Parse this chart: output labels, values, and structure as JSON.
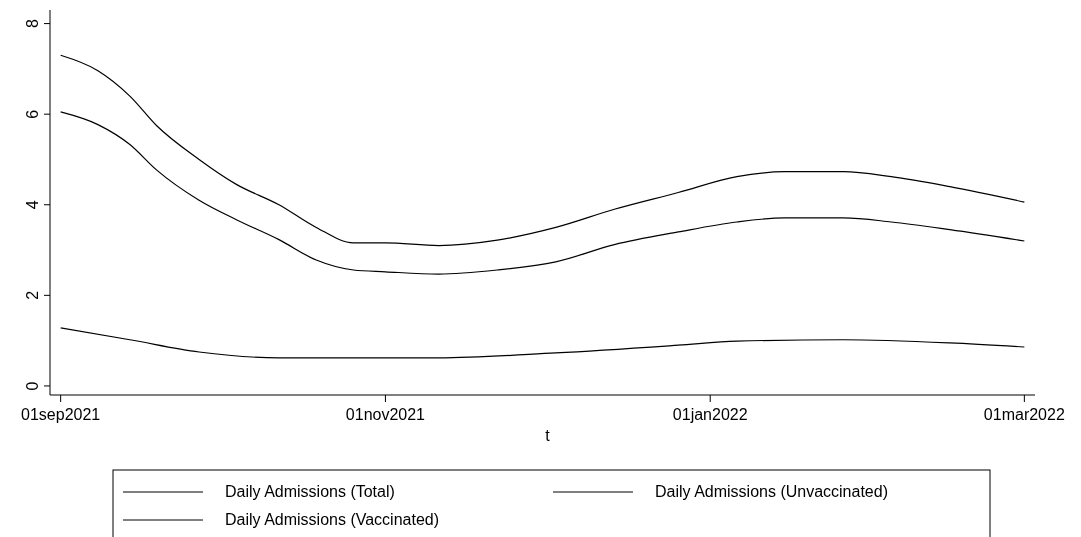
{
  "chart_data": {
    "type": "line",
    "xlabel": "t",
    "xlim": [
      "2021-08-30",
      "2022-03-03"
    ],
    "ylim": [
      -0.2,
      8.3
    ],
    "xticks": [
      {
        "value": "2021-09-01",
        "label": "01sep2021"
      },
      {
        "value": "2021-11-01",
        "label": "01nov2021"
      },
      {
        "value": "2022-01-01",
        "label": "01jan2022"
      },
      {
        "value": "2022-03-01",
        "label": "01mar2022"
      }
    ],
    "yticks": [
      0,
      2,
      4,
      6,
      8
    ],
    "grid": false,
    "legend": "bottom",
    "line_style": "solid",
    "marker": "none",
    "series": [
      {
        "name": "Daily Admissions (Total)",
        "color": "#000000",
        "x": [
          "2021-09-01",
          "2021-09-08",
          "2021-09-14",
          "2021-09-19",
          "2021-09-27",
          "2021-10-04",
          "2021-10-12",
          "2021-10-19",
          "2021-10-26",
          "2021-11-01",
          "2021-11-11",
          "2021-11-22",
          "2021-12-03",
          "2021-12-14",
          "2021-12-26",
          "2022-01-06",
          "2022-01-15",
          "2022-01-26",
          "2022-02-04",
          "2022-02-15",
          "2022-03-01"
        ],
        "values": [
          7.3,
          6.96,
          6.4,
          5.75,
          5.0,
          4.45,
          4.0,
          3.5,
          3.16,
          3.16,
          3.1,
          3.22,
          3.5,
          3.9,
          4.27,
          4.62,
          4.73,
          4.73,
          4.62,
          4.4,
          4.06
        ]
      },
      {
        "name": "Daily Admissions (Unvaccinated)",
        "color": "#000000",
        "x": [
          "2021-09-01",
          "2021-09-08",
          "2021-09-14",
          "2021-09-19",
          "2021-09-27",
          "2021-10-04",
          "2021-10-12",
          "2021-10-19",
          "2021-10-26",
          "2021-11-01",
          "2021-11-11",
          "2021-11-22",
          "2021-12-03",
          "2021-12-14",
          "2021-12-26",
          "2022-01-06",
          "2022-01-15",
          "2022-01-26",
          "2022-02-04",
          "2022-02-15",
          "2022-03-01"
        ],
        "values": [
          6.05,
          5.77,
          5.33,
          4.77,
          4.1,
          3.67,
          3.23,
          2.78,
          2.56,
          2.52,
          2.47,
          2.56,
          2.74,
          3.12,
          3.4,
          3.62,
          3.71,
          3.71,
          3.62,
          3.45,
          3.2
        ]
      },
      {
        "name": "Daily Admissions (Vaccinated)",
        "color": "#000000",
        "x": [
          "2021-09-01",
          "2021-09-14",
          "2021-09-27",
          "2021-10-12",
          "2021-10-26",
          "2021-11-11",
          "2021-12-03",
          "2021-12-26",
          "2022-01-06",
          "2022-01-26",
          "2022-02-15",
          "2022-03-01"
        ],
        "values": [
          1.28,
          1.02,
          0.75,
          0.62,
          0.62,
          0.62,
          0.73,
          0.9,
          0.99,
          1.02,
          0.95,
          0.86
        ]
      }
    ]
  }
}
